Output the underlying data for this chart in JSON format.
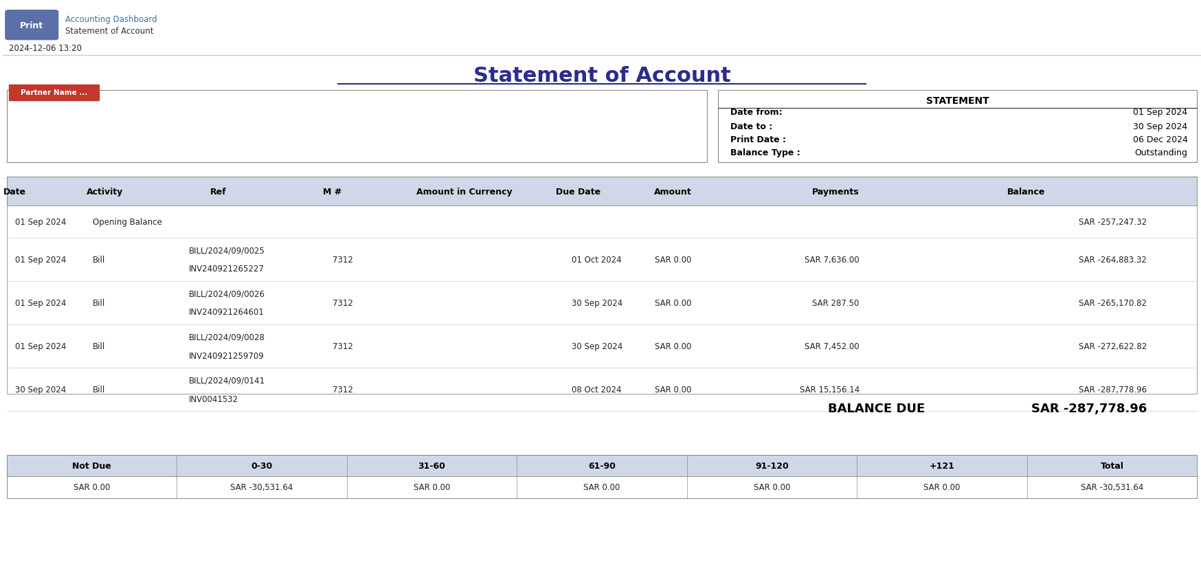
{
  "title": "Statement of Account",
  "header_breadcrumb1": "Accounting Dashboard",
  "header_breadcrumb2": "Statement of Account",
  "print_button_text": "Print",
  "print_button_color": "#5b6fa8",
  "datetime_stamp": "2024-12-06 13:20",
  "partner_label": "Partner Name ...",
  "partner_bg": "#c0392b",
  "partner_text_color": "#ffffff",
  "statement_box_title": "STATEMENT",
  "statement_fields": [
    {
      "label": "Date from:",
      "value": "01 Sep 2024"
    },
    {
      "label": "Date to :",
      "value": "30 Sep 2024"
    },
    {
      "label": "Print Date :",
      "value": "06 Dec 2024"
    },
    {
      "label": "Balance Type :",
      "value": "Outstanding"
    }
  ],
  "table_header_bg": "#d0d8e8",
  "table_header_color": "#000000",
  "table_columns": [
    "Date",
    "Activity",
    "Ref",
    "M #",
    "Amount in Currency",
    "Due Date",
    "Amount",
    "Payments",
    "Balance"
  ],
  "table_rows": [
    {
      "date": "01 Sep 2024",
      "activity": "Opening Balance",
      "ref": "",
      "mnum": "",
      "amount_curr": "",
      "due_date": "",
      "amount": "",
      "payments": "",
      "balance": "SAR -257,247.32",
      "two_line": false
    },
    {
      "date": "01 Sep 2024",
      "activity": "Bill",
      "ref": "BILL/2024/09/0025\nINV240921265227",
      "mnum": "7312",
      "amount_curr": "",
      "due_date": "01 Oct 2024",
      "amount": "SAR 0.00",
      "payments": "SAR 7,636.00",
      "balance": "SAR -264,883.32",
      "two_line": true
    },
    {
      "date": "01 Sep 2024",
      "activity": "Bill",
      "ref": "BILL/2024/09/0026\nINV240921264601",
      "mnum": "7312",
      "amount_curr": "",
      "due_date": "30 Sep 2024",
      "amount": "SAR 0.00",
      "payments": "SAR 287.50",
      "balance": "SAR -265,170.82",
      "two_line": true
    },
    {
      "date": "01 Sep 2024",
      "activity": "Bill",
      "ref": "BILL/2024/09/0028\nINV240921259709",
      "mnum": "7312",
      "amount_curr": "",
      "due_date": "30 Sep 2024",
      "amount": "SAR 0.00",
      "payments": "SAR 7,452.00",
      "balance": "SAR -272,622.82",
      "two_line": true
    },
    {
      "date": "30 Sep 2024",
      "activity": "Bill",
      "ref": "BILL/2024/09/0141\nINV0041532",
      "mnum": "7312",
      "amount_curr": "",
      "due_date": "08 Oct 2024",
      "amount": "SAR 0.00",
      "payments": "SAR 15,156.14",
      "balance": "SAR -287,778.96",
      "two_line": true
    }
  ],
  "balance_due_label": "BALANCE DUE",
  "balance_due_value": "SAR -287,778.96",
  "aging_headers": [
    "Not Due",
    "0-30",
    "31-60",
    "61-90",
    "91-120",
    "+121",
    "Total"
  ],
  "aging_values": [
    "SAR 0.00",
    "SAR -30,531.64",
    "SAR 0.00",
    "SAR 0.00",
    "SAR 0.00",
    "SAR 0.00",
    "SAR -30,531.64"
  ],
  "aging_header_bg": "#d0d8e8",
  "line_color": "#888888",
  "box_border_color": "#888888",
  "title_color": "#2c2c8c",
  "breadcrumb_color": "#3a6fa8"
}
